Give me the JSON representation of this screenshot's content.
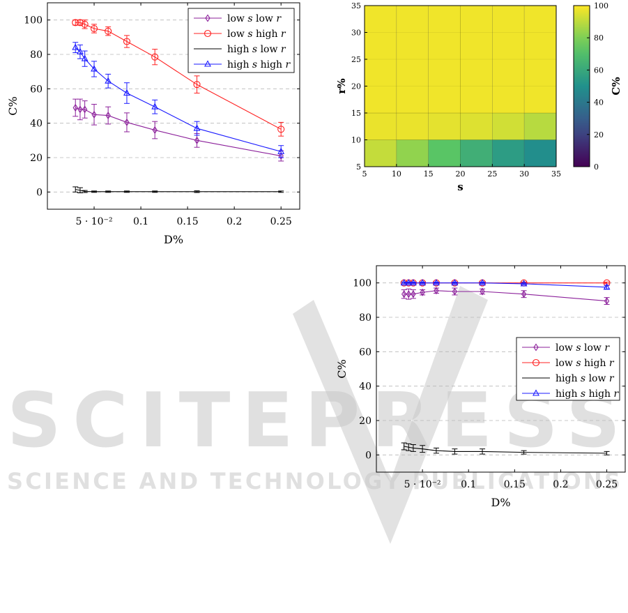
{
  "watermark": {
    "title": "SCITEPRESS",
    "subtitle": "SCIENCE AND TECHNOLOGY PUBLICATIONS"
  },
  "chart_data": [
    {
      "type": "line",
      "xlabel": "D%",
      "ylabel": "C%",
      "xlim": [
        0,
        0.27
      ],
      "ylim": [
        -10,
        110
      ],
      "yticks": [
        0,
        20,
        40,
        60,
        80,
        100
      ],
      "xticks": [
        0.05,
        0.1,
        0.15,
        0.2,
        0.25
      ],
      "xtick_labels": [
        "5 · 10⁻²",
        "0.1",
        "0.15",
        "0.2",
        "0.25"
      ],
      "ytick_labels": [
        "0",
        "20",
        "40",
        "60",
        "80",
        "100"
      ],
      "grid": "horizontal-dashed",
      "legend_position": "top-right",
      "x": [
        0.03,
        0.035,
        0.04,
        0.05,
        0.065,
        0.085,
        0.115,
        0.16,
        0.25
      ],
      "series": [
        {
          "name": "low s low r",
          "marker": "diamond",
          "color": "#8b1f9a",
          "values": [
            49,
            48,
            48,
            45,
            44.5,
            40.5,
            36,
            30,
            21
          ],
          "errors": [
            5,
            6,
            5,
            6,
            5,
            5.5,
            5,
            4,
            3
          ]
        },
        {
          "name": "low s high r",
          "marker": "circle",
          "color": "#ff2020",
          "values": [
            98.5,
            98.5,
            97.5,
            95,
            93.5,
            87.5,
            78.5,
            62.5,
            36.5
          ],
          "errors": [
            1.5,
            1.5,
            2.5,
            2.5,
            2.5,
            3.5,
            4.5,
            5,
            4
          ]
        },
        {
          "name": "high s low r",
          "marker": "none",
          "color": "#000000",
          "values": [
            1.5,
            1,
            0.3,
            0.2,
            0.2,
            0.2,
            0.2,
            0.2,
            0.2
          ],
          "errors": [
            1.5,
            1.5,
            0.6,
            0.4,
            0.4,
            0.4,
            0.4,
            0.5,
            0.4
          ]
        },
        {
          "name": "high s high r",
          "marker": "triangle",
          "color": "#1a1aff",
          "values": [
            84,
            81.5,
            77.5,
            71.5,
            64.5,
            57.5,
            49.5,
            37,
            23.5
          ],
          "errors": [
            3,
            4,
            4.5,
            4.5,
            4,
            6,
            4,
            4,
            3.5
          ]
        }
      ]
    },
    {
      "type": "heatmap",
      "xlabel": "s",
      "ylabel": "r%",
      "colorbar_label": "C%",
      "xlim": [
        5,
        35
      ],
      "ylim": [
        5,
        35
      ],
      "x_edges": [
        5,
        10,
        15,
        20,
        25,
        30,
        35
      ],
      "y_edges": [
        5,
        10,
        15,
        35
      ],
      "xtick_labels": [
        "5",
        "10",
        "15",
        "20",
        "25",
        "30",
        "35"
      ],
      "ytick_labels": [
        "5",
        "10",
        "15",
        "20",
        "25",
        "30",
        "35"
      ],
      "colorbar_range": [
        0,
        100
      ],
      "colorbar_ticks": [
        "0",
        "20",
        "40",
        "60",
        "80",
        "100"
      ],
      "values_by_row": [
        [
          91,
          83,
          73,
          63,
          55,
          49
        ],
        [
          97,
          97,
          96,
          95,
          93,
          89
        ],
        [
          98,
          98,
          98,
          98,
          98,
          98
        ]
      ]
    },
    {
      "type": "line",
      "xlabel": "D%",
      "ylabel": "C%",
      "xlim": [
        0,
        0.27
      ],
      "ylim": [
        -10,
        110
      ],
      "yticks": [
        0,
        20,
        40,
        60,
        80,
        100
      ],
      "xticks": [
        0.05,
        0.1,
        0.15,
        0.2,
        0.25
      ],
      "xtick_labels": [
        "5 · 10⁻²",
        "0.1",
        "0.15",
        "0.2",
        "0.25"
      ],
      "ytick_labels": [
        "0",
        "20",
        "40",
        "60",
        "80",
        "100"
      ],
      "grid": "horizontal-dashed",
      "legend_position": "right",
      "x": [
        0.03,
        0.035,
        0.04,
        0.05,
        0.065,
        0.085,
        0.115,
        0.16,
        0.25
      ],
      "series": [
        {
          "name": "low s low r",
          "marker": "diamond",
          "color": "#8b1f9a",
          "values": [
            93.5,
            93.5,
            93.5,
            94.5,
            95.5,
            95,
            95,
            93.5,
            89.5
          ],
          "errors": [
            2.5,
            3,
            2.5,
            1.5,
            1.5,
            2,
            1.5,
            2,
            2
          ]
        },
        {
          "name": "low s high r",
          "marker": "circle",
          "color": "#ff2020",
          "values": [
            100,
            100,
            100,
            100,
            100,
            100,
            100,
            100,
            100
          ],
          "errors": [
            0.5,
            0.5,
            0.5,
            0.5,
            0.5,
            0.5,
            0.5,
            0.5,
            0.5
          ]
        },
        {
          "name": "high s low r",
          "marker": "none",
          "color": "#000000",
          "values": [
            5,
            4.5,
            4,
            3.5,
            2.5,
            2,
            2,
            1.5,
            1
          ],
          "errors": [
            2,
            2,
            2,
            2,
            1.5,
            1.5,
            1.5,
            1,
            1
          ]
        },
        {
          "name": "high s high r",
          "marker": "triangle",
          "color": "#1a1aff",
          "values": [
            100,
            100,
            100,
            100,
            100,
            100,
            100,
            99.5,
            97.5
          ],
          "errors": [
            0.5,
            0.5,
            0.5,
            0.5,
            0.5,
            0.5,
            0.5,
            0.5,
            1
          ]
        }
      ]
    }
  ]
}
